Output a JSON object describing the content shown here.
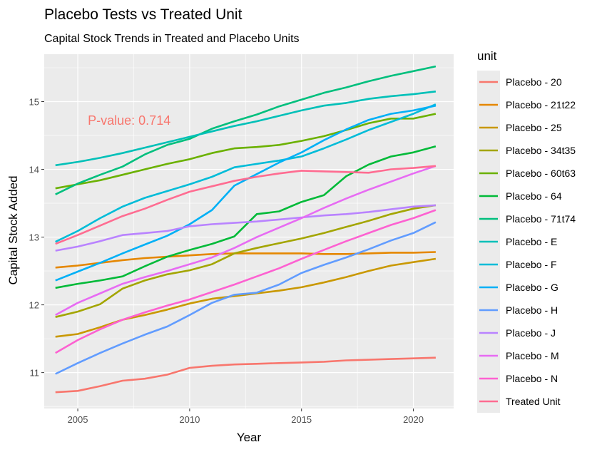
{
  "chart_data": {
    "type": "line",
    "title": "Placebo Tests vs Treated Unit",
    "subtitle": "Capital Stock Trends in Treated and Placebo Units",
    "xlabel": "Year",
    "ylabel": "Capital Stock Added",
    "xlim": [
      2003.5,
      2021.8
    ],
    "ylim": [
      10.47,
      15.7
    ],
    "x_ticks": [
      2005,
      2010,
      2015,
      2020
    ],
    "x_tick_labels": [
      "2005",
      "2010",
      "2015",
      "2020"
    ],
    "y_ticks": [
      11,
      12,
      13,
      14,
      15
    ],
    "y_tick_labels": [
      "11",
      "12",
      "13",
      "14",
      "15"
    ],
    "legend_title": "unit",
    "legend_position": "right",
    "annotation": {
      "text": "P-value: 0.714",
      "x": 2007.3,
      "y": 14.72,
      "color": "#F8766D"
    },
    "x": [
      2004,
      2005,
      2006,
      2007,
      2008,
      2009,
      2010,
      2011,
      2012,
      2013,
      2014,
      2015,
      2016,
      2017,
      2018,
      2019,
      2020,
      2021
    ],
    "series": [
      {
        "name": "Placebo - 20",
        "color": "#F8766D",
        "values": [
          10.71,
          10.73,
          10.8,
          10.88,
          10.91,
          10.97,
          11.07,
          11.1,
          11.12,
          11.13,
          11.14,
          11.15,
          11.16,
          11.18,
          11.19,
          11.2,
          11.21,
          11.22
        ]
      },
      {
        "name": "Placebo - 21t22",
        "color": "#E58700",
        "values": [
          12.55,
          12.58,
          12.62,
          12.66,
          12.69,
          12.71,
          12.73,
          12.75,
          12.76,
          12.76,
          12.76,
          12.76,
          12.75,
          12.75,
          12.76,
          12.77,
          12.77,
          12.78
        ]
      },
      {
        "name": "Placebo - 25",
        "color": "#C99800",
        "values": [
          11.53,
          11.57,
          11.67,
          11.78,
          11.85,
          11.93,
          12.02,
          12.09,
          12.13,
          12.17,
          12.21,
          12.26,
          12.33,
          12.41,
          12.5,
          12.58,
          12.63,
          12.68
        ]
      },
      {
        "name": "Placebo - 34t35",
        "color": "#A3A500",
        "values": [
          11.82,
          11.9,
          12.01,
          12.24,
          12.36,
          12.45,
          12.51,
          12.6,
          12.76,
          12.84,
          12.91,
          12.98,
          13.06,
          13.15,
          13.24,
          13.34,
          13.42,
          13.47
        ]
      },
      {
        "name": "Placebo - 60t63",
        "color": "#6BB100",
        "values": [
          13.72,
          13.78,
          13.84,
          13.92,
          14.0,
          14.08,
          14.15,
          14.24,
          14.31,
          14.33,
          14.36,
          14.42,
          14.49,
          14.58,
          14.68,
          14.75,
          14.75,
          14.82
        ]
      },
      {
        "name": "Placebo - 64",
        "color": "#00BA38",
        "values": [
          12.25,
          12.31,
          12.36,
          12.42,
          12.57,
          12.71,
          12.81,
          12.9,
          13.01,
          13.34,
          13.38,
          13.52,
          13.62,
          13.9,
          14.07,
          14.19,
          14.25,
          14.34
        ]
      },
      {
        "name": "Placebo - 71t74",
        "color": "#00BF7D",
        "values": [
          13.63,
          13.79,
          13.92,
          14.04,
          14.22,
          14.36,
          14.45,
          14.6,
          14.71,
          14.81,
          14.93,
          15.03,
          15.13,
          15.21,
          15.3,
          15.38,
          15.45,
          15.52
        ]
      },
      {
        "name": "Placebo - E",
        "color": "#00C0B8",
        "values": [
          14.06,
          14.11,
          14.17,
          14.24,
          14.32,
          14.4,
          14.48,
          14.56,
          14.64,
          14.71,
          14.79,
          14.87,
          14.94,
          14.98,
          15.04,
          15.08,
          15.11,
          15.15
        ]
      },
      {
        "name": "Placebo - F",
        "color": "#00BCD8",
        "values": [
          12.93,
          13.09,
          13.28,
          13.45,
          13.58,
          13.68,
          13.78,
          13.89,
          14.03,
          14.08,
          14.13,
          14.19,
          14.31,
          14.44,
          14.58,
          14.7,
          14.82,
          14.96
        ]
      },
      {
        "name": "Placebo - G",
        "color": "#00B0F6",
        "values": [
          12.36,
          12.49,
          12.62,
          12.76,
          12.89,
          13.02,
          13.19,
          13.4,
          13.76,
          13.93,
          14.1,
          14.25,
          14.43,
          14.59,
          14.73,
          14.82,
          14.87,
          14.94
        ]
      },
      {
        "name": "Placebo - H",
        "color": "#619CFF",
        "values": [
          10.98,
          11.14,
          11.29,
          11.43,
          11.56,
          11.68,
          11.85,
          12.03,
          12.15,
          12.18,
          12.3,
          12.47,
          12.59,
          12.7,
          12.82,
          12.95,
          13.06,
          13.22
        ]
      },
      {
        "name": "Placebo - J",
        "color": "#B983FF",
        "values": [
          12.8,
          12.86,
          12.94,
          13.03,
          13.06,
          13.09,
          13.16,
          13.19,
          13.21,
          13.23,
          13.26,
          13.29,
          13.32,
          13.34,
          13.37,
          13.41,
          13.45,
          13.47
        ]
      },
      {
        "name": "Placebo - M",
        "color": "#E76BF3",
        "values": [
          11.85,
          12.03,
          12.17,
          12.31,
          12.41,
          12.5,
          12.6,
          12.7,
          12.84,
          13.0,
          13.14,
          13.28,
          13.43,
          13.57,
          13.7,
          13.82,
          13.94,
          14.05
        ]
      },
      {
        "name": "Placebo - N",
        "color": "#FD61D1",
        "values": [
          11.29,
          11.48,
          11.64,
          11.78,
          11.89,
          11.99,
          12.08,
          12.19,
          12.3,
          12.42,
          12.54,
          12.68,
          12.81,
          12.94,
          13.06,
          13.18,
          13.28,
          13.4
        ]
      },
      {
        "name": "Treated Unit",
        "color": "#FF6C91",
        "values": [
          12.9,
          13.03,
          13.17,
          13.31,
          13.42,
          13.55,
          13.67,
          13.75,
          13.83,
          13.89,
          13.94,
          13.98,
          13.97,
          13.96,
          13.95,
          14.0,
          14.02,
          14.05
        ]
      }
    ]
  }
}
